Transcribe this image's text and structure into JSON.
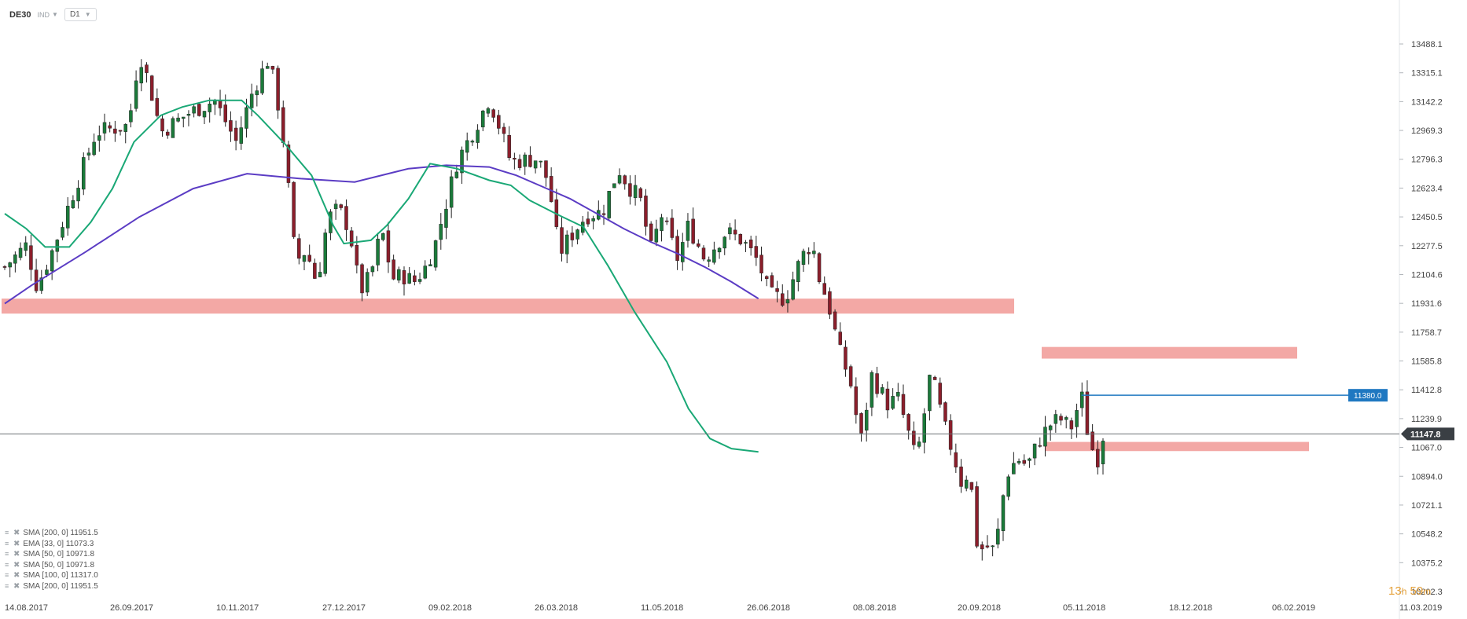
{
  "header": {
    "symbol": "DE30",
    "instrument_type": "IND",
    "timeframe": "D1"
  },
  "indicators": [
    {
      "label": "SMA [200, 0] 11951.5"
    },
    {
      "label": "EMA [33, 0] 11073.3"
    },
    {
      "label": "SMA [50, 0] 10971.8"
    },
    {
      "label": "SMA [50, 0] 10971.8"
    },
    {
      "label": "SMA [100, 0] 11317.0"
    },
    {
      "label": "SMA [200, 0] 11951.5"
    }
  ],
  "timer": {
    "hours": "13",
    "hours_unit": "h",
    "minutes": "59",
    "minutes_unit": "m"
  },
  "chart_data": {
    "type": "candlestick",
    "y_ticks": [
      13488.1,
      13315.1,
      13142.2,
      12969.3,
      12796.3,
      12623.4,
      12450.5,
      12277.5,
      12104.6,
      11931.6,
      11758.7,
      11585.8,
      11412.8,
      11239.9,
      11067.0,
      10894.0,
      10721.1,
      10548.2,
      10375.2,
      10202.3
    ],
    "y_tick_labels": [
      "13488.1",
      "13315.1",
      "13142.2",
      "12969.3",
      "12796.3",
      "12623.4",
      "12450.5",
      "12277.5",
      "12104.6",
      "11931.6",
      "11758.7",
      "11585.8",
      "11412.8",
      "11239.9",
      "11067.0",
      "10894.0",
      "10721.1",
      "10548.2",
      "10375.2",
      "10202.3"
    ],
    "ylim": [
      10202.3,
      13488.1
    ],
    "x_tick_labels": [
      "14.08.2017",
      "26.09.2017",
      "10.11.2017",
      "27.12.2017",
      "09.02.2018",
      "26.03.2018",
      "11.05.2018",
      "26.06.2018",
      "08.08.2018",
      "20.09.2018",
      "05.11.2018",
      "18.12.2018",
      "06.02.2019",
      "11.03.2019"
    ],
    "current_price": {
      "value": 11147.8,
      "label": "11147.8"
    },
    "level_marker": {
      "value": 11380.0,
      "label": "11380.0"
    },
    "zones": [
      {
        "from": 11870,
        "to": 11960
      },
      {
        "from": 11600,
        "to": 11670
      },
      {
        "from": 11045,
        "to": 11100
      }
    ],
    "sma200": [
      [
        0,
        11930
      ],
      [
        50,
        12040
      ],
      [
        150,
        12240
      ],
      [
        250,
        12450
      ],
      [
        350,
        12620
      ],
      [
        450,
        12710
      ],
      [
        550,
        12680
      ],
      [
        650,
        12660
      ],
      [
        750,
        12740
      ],
      [
        820,
        12760
      ],
      [
        900,
        12750
      ],
      [
        950,
        12700
      ],
      [
        1000,
        12630
      ],
      [
        1050,
        12560
      ],
      [
        1100,
        12470
      ],
      [
        1150,
        12380
      ],
      [
        1200,
        12300
      ],
      [
        1250,
        12230
      ],
      [
        1300,
        12150
      ],
      [
        1350,
        12060
      ],
      [
        1400,
        11960
      ]
    ],
    "ema33": [
      [
        0,
        12470
      ],
      [
        40,
        12380
      ],
      [
        75,
        12270
      ],
      [
        120,
        12270
      ],
      [
        160,
        12420
      ],
      [
        200,
        12620
      ],
      [
        240,
        12900
      ],
      [
        290,
        13060
      ],
      [
        330,
        13110
      ],
      [
        380,
        13150
      ],
      [
        440,
        13150
      ],
      [
        470,
        13060
      ],
      [
        520,
        12890
      ],
      [
        570,
        12700
      ],
      [
        610,
        12400
      ],
      [
        630,
        12290
      ],
      [
        680,
        12310
      ],
      [
        710,
        12400
      ],
      [
        750,
        12560
      ],
      [
        790,
        12770
      ],
      [
        840,
        12740
      ],
      [
        900,
        12670
      ],
      [
        940,
        12640
      ],
      [
        975,
        12550
      ],
      [
        1030,
        12460
      ],
      [
        1075,
        12390
      ],
      [
        1120,
        12160
      ],
      [
        1170,
        11880
      ],
      [
        1230,
        11580
      ],
      [
        1270,
        11300
      ],
      [
        1310,
        11120
      ],
      [
        1350,
        11060
      ],
      [
        1400,
        11040
      ]
    ]
  }
}
